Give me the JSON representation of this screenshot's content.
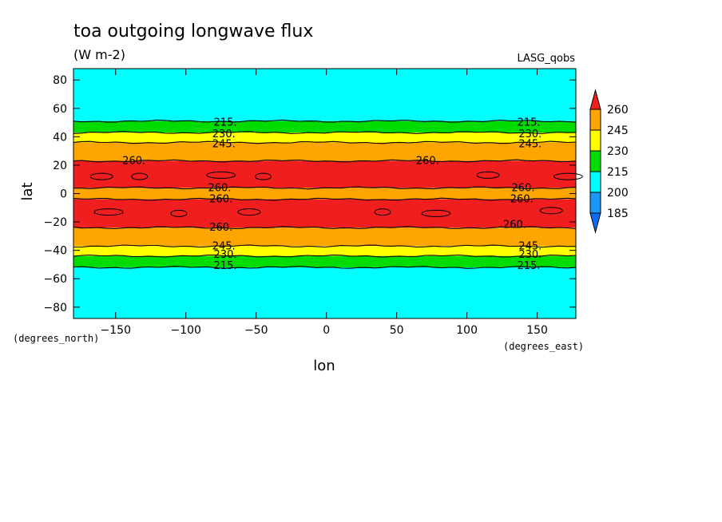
{
  "chart_data": {
    "type": "heatmap",
    "title": "toa outgoing longwave flux",
    "units": "(W m-2)",
    "source": "LASG_qobs",
    "xlabel": "lon",
    "ylabel": "lat",
    "x_units": "(degrees_east)",
    "y_units": "(degrees_north)",
    "xlim": [
      -180,
      177.5
    ],
    "ylim": [
      -88,
      88
    ],
    "x_ticks": [
      -150,
      -100,
      -50,
      0,
      50,
      100,
      150
    ],
    "y_ticks": [
      80,
      60,
      40,
      20,
      0,
      -20,
      -40,
      -60,
      -80
    ],
    "x_tick_labels": [
      "−150",
      "−100",
      "−50",
      "0",
      "50",
      "100",
      "150"
    ],
    "y_tick_labels": [
      "80",
      "60",
      "40",
      "20",
      "0",
      "−20",
      "−40",
      "−60",
      "−80"
    ],
    "levels": [
      185,
      200,
      215,
      230,
      245,
      260
    ],
    "colorbar_labels": [
      "260",
      "245",
      "230",
      "215",
      "200",
      "185"
    ],
    "colors": {
      "below_185": "#0a6ef5",
      "185_200": "#1e96f5",
      "200_215": "#00ffff",
      "215_230": "#00dc00",
      "230_245": "#ffff00",
      "245_260": "#ffa500",
      "above_260": "#f01e1e"
    },
    "latitude_bands": [
      {
        "from": 51,
        "to": 88,
        "value_range": "200-215"
      },
      {
        "from": 43,
        "to": 51,
        "value_range": "215-230"
      },
      {
        "from": 36,
        "to": 43,
        "value_range": "230-245"
      },
      {
        "from": 23,
        "to": 36,
        "value_range": "245-260"
      },
      {
        "from": 4,
        "to": 23,
        "value_range": ">260"
      },
      {
        "from": -4,
        "to": 4,
        "value_range": "245-260"
      },
      {
        "from": -24,
        "to": -4,
        "value_range": ">260"
      },
      {
        "from": -37,
        "to": -24,
        "value_range": "245-260"
      },
      {
        "from": -44,
        "to": -37,
        "value_range": "230-245"
      },
      {
        "from": -52,
        "to": -44,
        "value_range": "215-230"
      },
      {
        "from": -88,
        "to": -52,
        "value_range": "200-215"
      }
    ],
    "contour_labels": [
      {
        "text": "215.",
        "lon": -72,
        "lat": 50
      },
      {
        "text": "230.",
        "lon": -73,
        "lat": 42
      },
      {
        "text": "245.",
        "lon": -73,
        "lat": 35
      },
      {
        "text": "260.",
        "lon": -137,
        "lat": 23
      },
      {
        "text": "260.",
        "lon": -76,
        "lat": 4
      },
      {
        "text": "260.",
        "lon": -75,
        "lat": -4
      },
      {
        "text": "260.",
        "lon": -75,
        "lat": -24
      },
      {
        "text": "245.",
        "lon": -73,
        "lat": -37
      },
      {
        "text": "230.",
        "lon": -72,
        "lat": -43
      },
      {
        "text": "215.",
        "lon": -72,
        "lat": -51
      },
      {
        "text": "215.",
        "lon": 144,
        "lat": 50
      },
      {
        "text": "230.",
        "lon": 145,
        "lat": 42
      },
      {
        "text": "245.",
        "lon": 145,
        "lat": 35
      },
      {
        "text": "260.",
        "lon": 72,
        "lat": 23
      },
      {
        "text": "260.",
        "lon": 140,
        "lat": 4
      },
      {
        "text": "260.",
        "lon": 139,
        "lat": -4
      },
      {
        "text": "260.",
        "lon": 134,
        "lat": -22
      },
      {
        "text": "245.",
        "lon": 145,
        "lat": -37
      },
      {
        "text": "230.",
        "lon": 145,
        "lat": -43
      },
      {
        "text": "215.",
        "lon": 144,
        "lat": -51
      }
    ]
  }
}
